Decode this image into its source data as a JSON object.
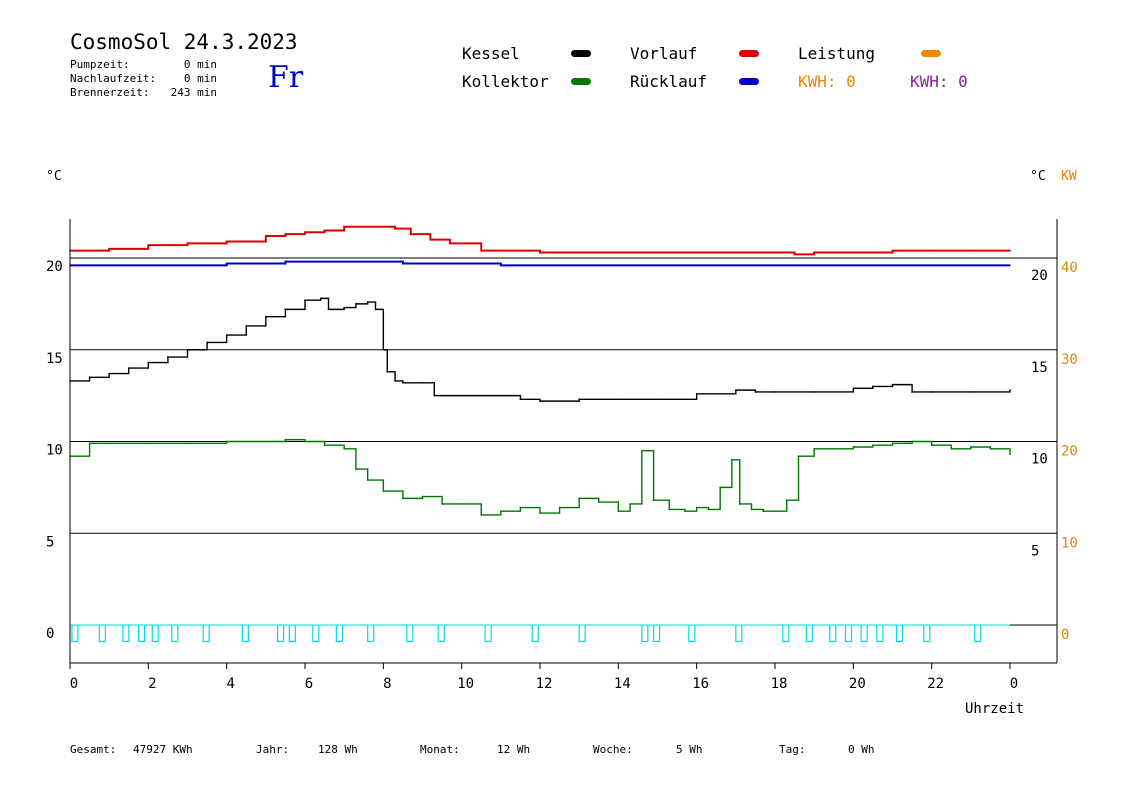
{
  "header": {
    "title": "CosmoSol 24.3.2023",
    "day": "Fr",
    "pump_label": "Pumpzeit:",
    "pump_value": "0 min",
    "nachlauf_label": "Nachlaufzeit:",
    "nachlauf_value": "0 min",
    "brenner_label": "Brennerzeit:",
    "brenner_value": "243 min"
  },
  "legend": {
    "kessel": "Kessel",
    "kollektor": "Kollektor",
    "vorlauf": "Vorlauf",
    "ruecklauf": "Rücklauf",
    "leistung": "Leistung",
    "kwh_orange": "KWH: 0",
    "kwh_purple": "KWH: 0"
  },
  "colors": {
    "kessel": "#000000",
    "kollektor": "#007700",
    "vorlauf": "#dd0000",
    "ruecklauf": "#0000cc",
    "leistung": "#ee8800",
    "kwh_purple": "#882299",
    "pump": "#00dddd",
    "axis_right_kw": "#dd8800"
  },
  "axis_units": {
    "left": "°C",
    "right_c": "°C",
    "right_kw": "KW",
    "x": "Uhrzeit"
  },
  "footer": {
    "gesamt_label": "Gesamt:",
    "gesamt_value": "47927 KWh",
    "jahr_label": "Jahr:",
    "jahr_value": "128 Wh",
    "monat_label": "Monat:",
    "monat_value": "12 Wh",
    "woche_label": "Woche:",
    "woche_value": "5 Wh",
    "tag_label": "Tag:",
    "tag_value": "0 Wh"
  },
  "chart_data": {
    "type": "line",
    "title": "CosmoSol 24.3.2023",
    "xlabel": "Uhrzeit",
    "ylabel": "°C",
    "xlim": [
      0,
      24
    ],
    "ylim": [
      -1.5,
      23
    ],
    "x_ticks": [
      "0",
      "2",
      "4",
      "6",
      "8",
      "10",
      "12",
      "14",
      "16",
      "18",
      "20",
      "22",
      "0"
    ],
    "y_left_ticks": [
      0,
      5,
      10,
      15,
      20
    ],
    "y_right_c_ticks": [
      5,
      10,
      15,
      20
    ],
    "y_right_kw_ticks": [
      0,
      10,
      20,
      30,
      40
    ],
    "grid_y": [
      0,
      5,
      10,
      15,
      20
    ],
    "series": [
      {
        "name": "Vorlauf",
        "color": "#dd0000",
        "x": [
          0,
          1,
          2,
          3,
          4,
          5,
          5.5,
          6,
          6.5,
          7,
          7.5,
          8,
          8.3,
          8.7,
          9.2,
          9.7,
          10.5,
          11,
          12,
          13,
          14,
          15,
          16,
          17,
          18,
          18.5,
          19,
          20,
          21,
          22,
          23,
          24
        ],
        "y": [
          20.4,
          20.5,
          20.7,
          20.8,
          20.9,
          21.2,
          21.3,
          21.4,
          21.5,
          21.7,
          21.7,
          21.7,
          21.6,
          21.3,
          21.0,
          20.8,
          20.4,
          20.4,
          20.3,
          20.3,
          20.3,
          20.3,
          20.3,
          20.3,
          20.3,
          20.2,
          20.3,
          20.3,
          20.4,
          20.4,
          20.4,
          20.4
        ]
      },
      {
        "name": "Rücklauf",
        "color": "#0000cc",
        "x": [
          0,
          2,
          4,
          5,
          5.5,
          6,
          6.5,
          7,
          8,
          8.5,
          9,
          10,
          11,
          12,
          14,
          16,
          18,
          20,
          22,
          24
        ],
        "y": [
          19.6,
          19.6,
          19.7,
          19.7,
          19.8,
          19.8,
          19.8,
          19.8,
          19.8,
          19.7,
          19.7,
          19.7,
          19.6,
          19.6,
          19.6,
          19.6,
          19.6,
          19.6,
          19.6,
          19.6
        ]
      },
      {
        "name": "Kessel",
        "color": "#000000",
        "x": [
          0,
          0.5,
          1,
          1.5,
          2,
          2.5,
          3,
          3.5,
          4,
          4.5,
          5,
          5.5,
          6,
          6.4,
          6.6,
          7,
          7.3,
          7.6,
          7.8,
          8,
          8.1,
          8.3,
          8.5,
          9,
          9.3,
          10,
          11,
          11.5,
          12,
          13,
          14,
          15,
          16,
          17,
          17.5,
          18,
          19,
          20,
          20.5,
          21,
          21.5,
          22,
          23,
          24
        ],
        "y": [
          13.3,
          13.5,
          13.7,
          14.0,
          14.3,
          14.6,
          15.0,
          15.4,
          15.8,
          16.3,
          16.8,
          17.2,
          17.7,
          17.8,
          17.2,
          17.3,
          17.5,
          17.6,
          17.2,
          15.0,
          13.8,
          13.3,
          13.2,
          13.2,
          12.5,
          12.5,
          12.5,
          12.3,
          12.2,
          12.3,
          12.3,
          12.3,
          12.6,
          12.8,
          12.7,
          12.7,
          12.7,
          12.9,
          13.0,
          13.1,
          12.7,
          12.7,
          12.7,
          12.8
        ]
      },
      {
        "name": "Kollektor",
        "color": "#007700",
        "x": [
          0,
          0.5,
          1,
          2,
          3,
          4,
          5,
          5.5,
          6,
          6.5,
          7,
          7.3,
          7.6,
          8,
          8.5,
          9,
          9.5,
          10,
          10.5,
          11,
          11.5,
          12,
          12.5,
          13,
          13.5,
          14,
          14.3,
          14.6,
          14.9,
          15.3,
          15.7,
          16,
          16.3,
          16.6,
          16.9,
          17.1,
          17.4,
          17.7,
          18,
          18.3,
          18.6,
          19,
          19.5,
          20,
          20.5,
          21,
          21.5,
          22,
          22.5,
          23,
          23.5,
          24
        ],
        "y": [
          9.2,
          9.9,
          9.9,
          9.9,
          9.9,
          10.0,
          10.0,
          10.1,
          10.0,
          9.8,
          9.6,
          8.5,
          7.9,
          7.3,
          6.9,
          7.0,
          6.6,
          6.6,
          6.0,
          6.2,
          6.4,
          6.1,
          6.4,
          6.9,
          6.7,
          6.2,
          6.6,
          9.5,
          6.8,
          6.3,
          6.2,
          6.4,
          6.3,
          7.5,
          9.0,
          6.6,
          6.3,
          6.2,
          6.2,
          6.8,
          9.2,
          9.6,
          9.6,
          9.7,
          9.8,
          9.9,
          10.0,
          9.8,
          9.6,
          9.7,
          9.6,
          9.3
        ]
      },
      {
        "name": "Pumpe",
        "color": "#00dddd",
        "x": [
          0.05,
          0.75,
          1.35,
          1.75,
          2.1,
          2.6,
          3.4,
          4.4,
          5.3,
          5.6,
          6.2,
          6.8,
          7.6,
          8.6,
          9.4,
          10.6,
          11.8,
          13.0,
          14.6,
          14.9,
          15.8,
          17.0,
          18.2,
          18.8,
          19.4,
          19.8,
          20.2,
          20.6,
          21.1,
          21.8,
          23.1
        ],
        "y": [
          -0.9,
          -0.9,
          -0.9,
          -0.9,
          -0.9,
          -0.9,
          -0.9,
          -0.9,
          -0.9,
          -0.9,
          -0.9,
          -0.9,
          -0.9,
          -0.9,
          -0.9,
          -0.9,
          -0.9,
          -0.9,
          -0.9,
          -0.9,
          -0.9,
          -0.9,
          -0.9,
          -0.9,
          -0.9,
          -0.9,
          -0.9,
          -0.9,
          -0.9,
          -0.9,
          -0.9
        ]
      }
    ]
  }
}
